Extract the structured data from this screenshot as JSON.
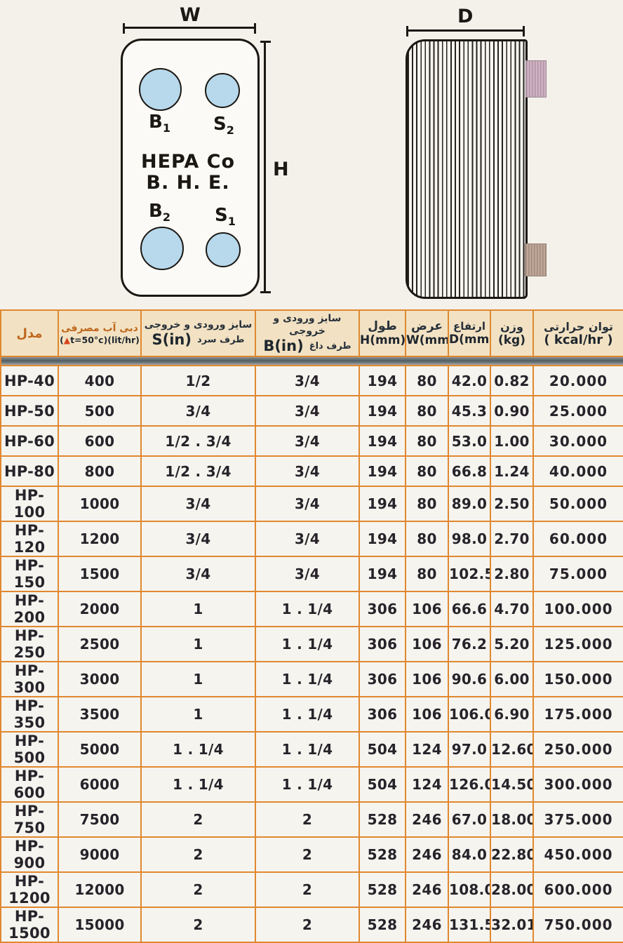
{
  "front_view": {
    "width_label": "W",
    "height_label": "H",
    "brand_line1": "HEPA Co",
    "brand_line2": "B. H. E.",
    "ports": [
      {
        "base": "B",
        "sub": "1"
      },
      {
        "base": "S",
        "sub": "2"
      },
      {
        "base": "B",
        "sub": "2"
      },
      {
        "base": "S",
        "sub": "1"
      }
    ]
  },
  "side_view": {
    "depth_label": "D"
  },
  "table": {
    "headers": {
      "model_fa": "مدل",
      "flow_fa": "دبی آب مصرفی",
      "flow_unit_prefix": "(",
      "flow_unit_triangle": "▲",
      "flow_unit_suffix": "t=50°c)(lit/hr)",
      "cold_fa": "سایز ورودی و خروجی",
      "cold_unit": "S(in)",
      "cold_side_fa": "طرف سرد",
      "hot_fa": "سایز ورودی و خروجی",
      "hot_unit": "B(in)",
      "hot_side_fa": "طرف داغ",
      "length_fa": "طول",
      "length_unit": "H(mm)",
      "width_fa": "عرض",
      "width_unit": "W(mm)",
      "height_fa": "ارتفاع",
      "height_unit": "D(mm)",
      "weight_fa": "وزن",
      "weight_unit": "(kg)",
      "power_fa": "توان حرارتی",
      "power_unit": "( kcal/hr )"
    },
    "rows": [
      {
        "model": "HP-40",
        "flow": "400",
        "s_in": "1/2",
        "b_in": "3/4",
        "h": "194",
        "w": "80",
        "d": "42.0",
        "kg": "0.82",
        "kcal": "20.000"
      },
      {
        "model": "HP-50",
        "flow": "500",
        "s_in": "3/4",
        "b_in": "3/4",
        "h": "194",
        "w": "80",
        "d": "45.3",
        "kg": "0.90",
        "kcal": "25.000"
      },
      {
        "model": "HP-60",
        "flow": "600",
        "s_in": "1/2 . 3/4",
        "b_in": "3/4",
        "h": "194",
        "w": "80",
        "d": "53.0",
        "kg": "1.00",
        "kcal": "30.000"
      },
      {
        "model": "HP-80",
        "flow": "800",
        "s_in": "1/2 . 3/4",
        "b_in": "3/4",
        "h": "194",
        "w": "80",
        "d": "66.8",
        "kg": "1.24",
        "kcal": "40.000"
      },
      {
        "model": "HP-100",
        "flow": "1000",
        "s_in": "3/4",
        "b_in": "3/4",
        "h": "194",
        "w": "80",
        "d": "89.0",
        "kg": "2.50",
        "kcal": "50.000"
      },
      {
        "model": "HP-120",
        "flow": "1200",
        "s_in": "3/4",
        "b_in": "3/4",
        "h": "194",
        "w": "80",
        "d": "98.0",
        "kg": "2.70",
        "kcal": "60.000"
      },
      {
        "model": "HP-150",
        "flow": "1500",
        "s_in": "3/4",
        "b_in": "3/4",
        "h": "194",
        "w": "80",
        "d": "102.5",
        "kg": "2.80",
        "kcal": "75.000"
      },
      {
        "model": "HP-200",
        "flow": "2000",
        "s_in": "1",
        "b_in": "1 . 1/4",
        "h": "306",
        "w": "106",
        "d": "66.6",
        "kg": "4.70",
        "kcal": "100.000"
      },
      {
        "model": "HP-250",
        "flow": "2500",
        "s_in": "1",
        "b_in": "1 . 1/4",
        "h": "306",
        "w": "106",
        "d": "76.2",
        "kg": "5.20",
        "kcal": "125.000"
      },
      {
        "model": "HP-300",
        "flow": "3000",
        "s_in": "1",
        "b_in": "1 . 1/4",
        "h": "306",
        "w": "106",
        "d": "90.6",
        "kg": "6.00",
        "kcal": "150.000"
      },
      {
        "model": "HP-350",
        "flow": "3500",
        "s_in": "1",
        "b_in": "1 . 1/4",
        "h": "306",
        "w": "106",
        "d": "106.0",
        "kg": "6.90",
        "kcal": "175.000"
      },
      {
        "model": "HP-500",
        "flow": "5000",
        "s_in": "1 . 1/4",
        "b_in": "1 . 1/4",
        "h": "504",
        "w": "124",
        "d": "97.0",
        "kg": "12.60",
        "kcal": "250.000"
      },
      {
        "model": "HP-600",
        "flow": "6000",
        "s_in": "1 . 1/4",
        "b_in": "1 . 1/4",
        "h": "504",
        "w": "124",
        "d": "126.0",
        "kg": "14.50",
        "kcal": "300.000"
      },
      {
        "model": "HP-750",
        "flow": "7500",
        "s_in": "2",
        "b_in": "2",
        "h": "528",
        "w": "246",
        "d": "67.0",
        "kg": "18.00",
        "kcal": "375.000"
      },
      {
        "model": "HP-900",
        "flow": "9000",
        "s_in": "2",
        "b_in": "2",
        "h": "528",
        "w": "246",
        "d": "84.0",
        "kg": "22.80",
        "kcal": "450.000"
      },
      {
        "model": "HP-1200",
        "flow": "12000",
        "s_in": "2",
        "b_in": "2",
        "h": "528",
        "w": "246",
        "d": "108.0",
        "kg": "28.00",
        "kcal": "600.000"
      },
      {
        "model": "HP-1500",
        "flow": "15000",
        "s_in": "2",
        "b_in": "2",
        "h": "528",
        "w": "246",
        "d": "131.5",
        "kg": "32.01",
        "kcal": "750.000"
      }
    ]
  },
  "colors": {
    "grid_orange": "#e0882f",
    "header_cream": "#f2e2c3",
    "port_blue": "#b8d9ec",
    "tab_pink": "#cfb3c4",
    "tab_tan": "#c0a899",
    "model_red": "#8b2f24",
    "triangle_red": "#d8421c"
  }
}
